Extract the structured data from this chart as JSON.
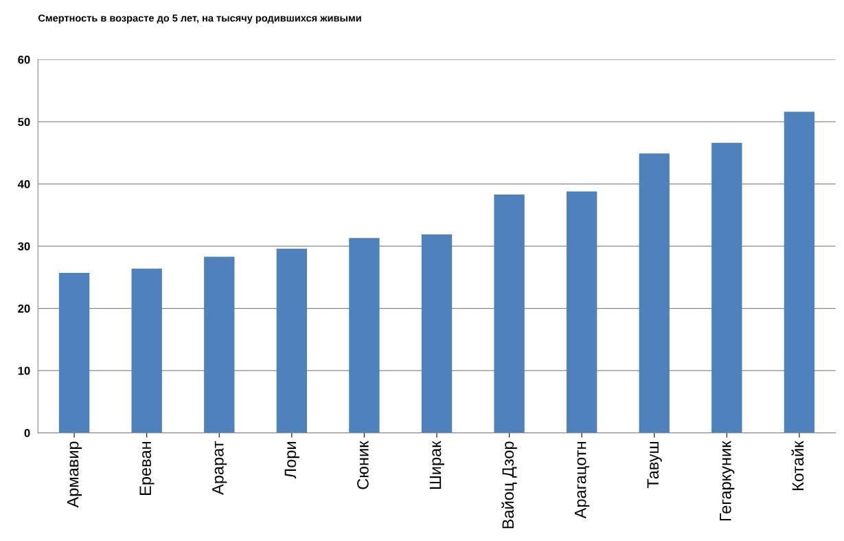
{
  "chart_data": {
    "type": "bar",
    "title": "Смертность в возрасте до 5 лет, на тысячу родившихся живыми",
    "categories": [
      "Армавир",
      "Ереван",
      "Арарат",
      "Лори",
      "Сюник",
      "Ширак",
      "Вайоц Дзор",
      "Арагацотн",
      "Тавуш",
      "Гегаркуник",
      "Котайк"
    ],
    "values": [
      25.7,
      26.4,
      28.3,
      29.6,
      31.3,
      31.9,
      38.3,
      38.8,
      44.9,
      46.6,
      51.6
    ],
    "color": "#4f81bd",
    "ylim": [
      0,
      60
    ],
    "yticks": [
      0,
      10,
      20,
      30,
      40,
      50,
      60
    ],
    "grid": "y",
    "legend": false
  }
}
